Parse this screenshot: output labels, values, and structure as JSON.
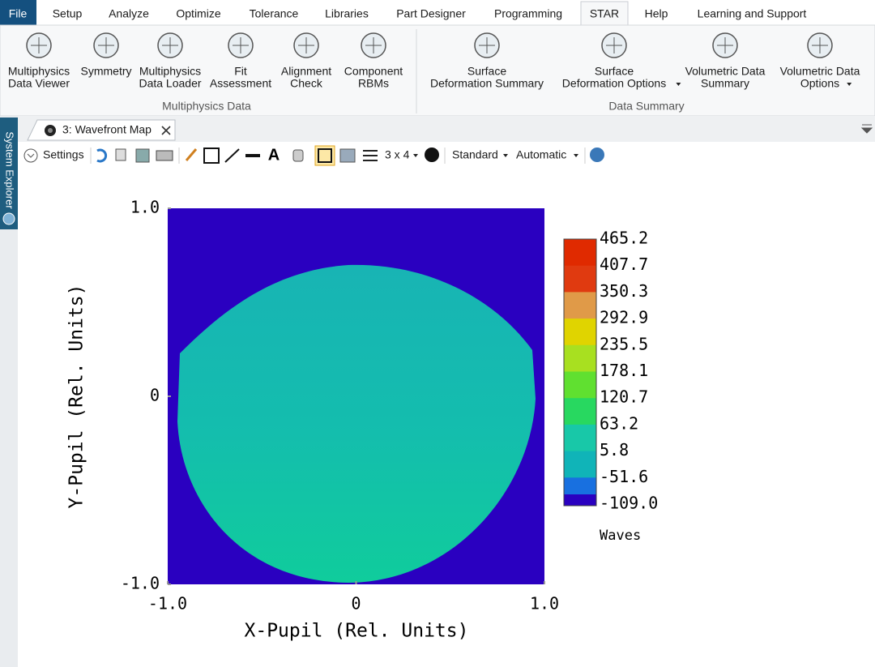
{
  "menu": [
    "File",
    "Setup",
    "Analyze",
    "Optimize",
    "Tolerance",
    "Libraries",
    "Part Designer",
    "Programming",
    "STAR",
    "Help",
    "Learning and Support"
  ],
  "ribbon": {
    "groups": [
      {
        "label": "Multiphysics Data",
        "buttons": [
          [
            "Multiphysics",
            "Data Viewer"
          ],
          [
            "Symmetry"
          ],
          [
            "Multiphysics",
            "Data Loader"
          ],
          [
            "Fit",
            "Assessment"
          ],
          [
            "Alignment",
            "Check"
          ],
          [
            "Component",
            "RBMs"
          ]
        ]
      },
      {
        "label": "Data Summary",
        "buttons": [
          [
            "Surface",
            "Deformation Summary"
          ],
          [
            "Surface",
            "Deformation Options"
          ],
          [
            "Volumetric Data",
            "Summary"
          ],
          [
            "Volumetric Data",
            "Options"
          ]
        ]
      }
    ]
  },
  "side_panel": "System Explorer",
  "document_tab": "3: Wavefront Map",
  "toolbar": {
    "settings": "Settings",
    "layout": "3 x 4",
    "style": "Standard",
    "scale": "Automatic"
  },
  "plot": {
    "x_label": "X-Pupil (Rel. Units)",
    "y_label": "Y-Pupil (Rel. Units)",
    "xlim": [
      -1,
      1
    ],
    "ylim": [
      -1,
      1
    ],
    "xticks": [
      {
        "value": -1,
        "label": "-1.0"
      },
      0,
      {
        "value": 1,
        "label": "1.0"
      }
    ],
    "yticks": [
      {
        "value": -1,
        "label": "-1.0"
      },
      0,
      {
        "value": 1,
        "label": "1.0"
      }
    ],
    "colorbar": {
      "labels": [
        "465.2",
        "407.7",
        "350.3",
        "292.9",
        "235.5",
        "178.1",
        "120.7",
        "63.2",
        "5.8",
        "-51.6",
        "-109.0"
      ],
      "unit": "Waves"
    }
  }
}
